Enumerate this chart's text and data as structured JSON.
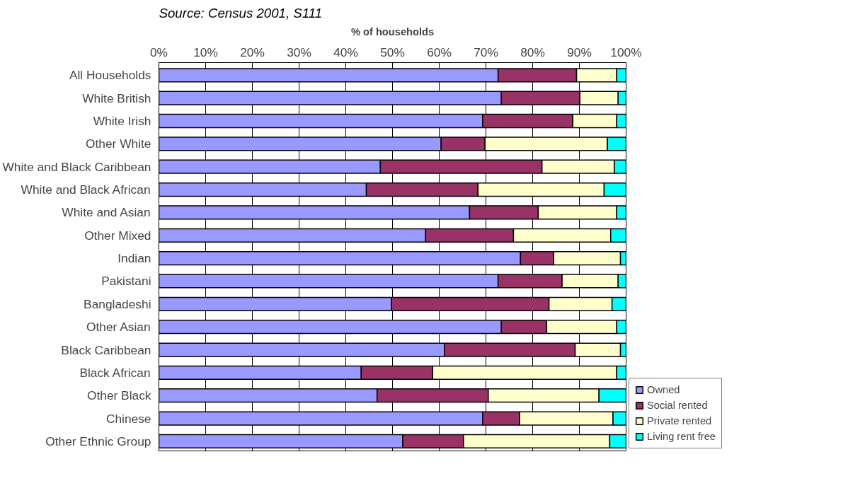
{
  "chart_data": {
    "type": "bar",
    "orientation": "horizontal",
    "stacked": true,
    "xlabel": "% of households",
    "annotations": [
      "Source: Census 2001, S111"
    ],
    "categories": [
      "All Households",
      "White British",
      "White Irish",
      "Other White",
      "White and Black Caribbean",
      "White and Black African",
      "White and Asian",
      "Other Mixed",
      "Indian",
      "Pakistani",
      "Bangladeshi",
      "Other Asian",
      "Black Caribbean",
      "Black African",
      "Other Black",
      "Chinese",
      "Other Ethnic Group"
    ],
    "series": [
      {
        "name": "Owned",
        "color": "#9999ff",
        "values": [
          72.6,
          73.3,
          69.3,
          60.4,
          47.4,
          44.4,
          66.5,
          57.1,
          77.4,
          72.6,
          49.8,
          73.3,
          61.1,
          43.3,
          46.7,
          69.3,
          52.2
        ]
      },
      {
        "name": "Social rented",
        "color": "#993366",
        "values": [
          16.8,
          16.8,
          19.3,
          9.4,
          34.6,
          23.9,
          14.7,
          18.8,
          7.1,
          13.7,
          33.7,
          9.7,
          28.0,
          15.3,
          23.8,
          7.9,
          13.0
        ]
      },
      {
        "name": "Private rented",
        "color": "#ffffcc",
        "values": [
          8.6,
          8.2,
          9.4,
          26.2,
          15.5,
          27.0,
          16.8,
          20.8,
          14.3,
          12.0,
          13.5,
          15.0,
          9.7,
          39.4,
          23.7,
          20.0,
          31.3
        ]
      },
      {
        "name": "Living rent free",
        "color": "#00ffff",
        "values": [
          2.0,
          1.7,
          2.0,
          4.0,
          2.5,
          4.7,
          2.0,
          3.3,
          1.2,
          1.7,
          3.0,
          2.0,
          1.2,
          2.0,
          5.8,
          2.8,
          3.5
        ]
      }
    ],
    "xlim": [
      0,
      100
    ],
    "xticks": [
      {
        "value": 0,
        "label": "0%"
      },
      {
        "value": 10,
        "label": "10%"
      },
      {
        "value": 20,
        "label": "20%"
      },
      {
        "value": 30,
        "label": "30%"
      },
      {
        "value": 40,
        "label": "40%"
      },
      {
        "value": 50,
        "label": "50%"
      },
      {
        "value": 60,
        "label": "60%"
      },
      {
        "value": 70,
        "label": "70%"
      },
      {
        "value": 80,
        "label": "80%"
      },
      {
        "value": 90,
        "label": "90%"
      },
      {
        "value": 100,
        "label": "100%"
      }
    ],
    "grid": "x",
    "legend": "bottom right"
  }
}
